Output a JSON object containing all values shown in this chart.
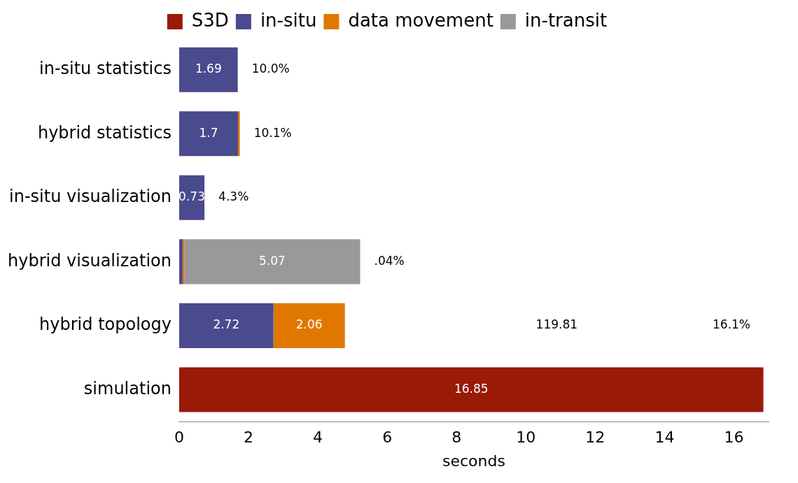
{
  "chart_data": {
    "type": "bar",
    "orientation": "horizontal",
    "stacked": true,
    "xlabel": "seconds",
    "categories": [
      "in-situ statistics",
      "hybrid statistics",
      "in-situ visualization",
      "hybrid visualization",
      "hybrid topology",
      "simulation"
    ],
    "series": [
      {
        "name": "S3D",
        "color": "#9a1a08",
        "values": [
          null,
          null,
          null,
          null,
          null,
          16.85
        ],
        "value_labels": [
          null,
          null,
          null,
          null,
          null,
          "16.85"
        ]
      },
      {
        "name": "in-situ",
        "color": "#4a4a8e",
        "values": [
          1.69,
          1.7,
          0.73,
          0.1,
          2.72,
          null
        ],
        "value_labels": [
          "1.69",
          "1.7",
          "0.73",
          null,
          "2.72",
          null
        ]
      },
      {
        "name": "data movement",
        "color": "#e07800",
        "values": [
          null,
          0.05,
          null,
          0.05,
          2.06,
          null
        ],
        "value_labels": [
          null,
          null,
          null,
          null,
          "2.06",
          null
        ]
      },
      {
        "name": "in-transit",
        "color": "#999999",
        "values": [
          null,
          null,
          null,
          5.07,
          null,
          null
        ],
        "value_labels": [
          null,
          null,
          null,
          "5.07",
          null,
          null
        ]
      }
    ],
    "xlim": [
      0,
      17
    ],
    "xticks": [
      0,
      2,
      4,
      6,
      8,
      10,
      12,
      14,
      16
    ],
    "grid": false,
    "legend": "top",
    "annotations": [
      "10.0%",
      "10.1%",
      "4.3%",
      ".04%",
      "119.81",
      "16.1%"
    ]
  }
}
